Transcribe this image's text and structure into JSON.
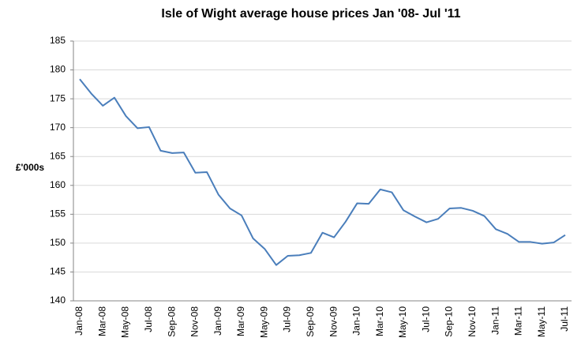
{
  "chart_data": {
    "type": "line",
    "title": "Isle of Wight average house prices Jan '08- Jul '11",
    "y_label": "£'000s",
    "categories": [
      "Jan-08",
      null,
      "Mar-08",
      null,
      "May-08",
      null,
      "Jul-08",
      null,
      "Sep-08",
      null,
      "Nov-08",
      null,
      "Jan-09",
      null,
      "Mar-09",
      null,
      "May-09",
      null,
      "Jul-09",
      null,
      "Sep-09",
      null,
      "Nov-09",
      null,
      "Jan-10",
      null,
      "Mar-10",
      null,
      "May-10",
      null,
      "Jul-10",
      null,
      "Sep-10",
      null,
      "Nov-10",
      null,
      "Jan-11",
      null,
      "Mar-11",
      null,
      "May-11",
      null,
      "Jul-11"
    ],
    "values": [
      178.4,
      175.9,
      173.8,
      175.2,
      172.0,
      169.9,
      170.1,
      166.0,
      165.6,
      165.7,
      162.2,
      162.3,
      158.4,
      156.0,
      154.8,
      150.8,
      149.0,
      146.2,
      147.8,
      147.9,
      148.3,
      151.8,
      151.0,
      153.7,
      156.9,
      156.8,
      159.3,
      158.8,
      155.7,
      154.6,
      153.6,
      154.2,
      156.0,
      156.1,
      155.6,
      154.7,
      152.4,
      151.6,
      150.2,
      150.2,
      149.9,
      150.1,
      151.4
    ],
    "color": "#4a7ebb",
    "ylim": [
      140,
      185
    ],
    "yticks": [
      140,
      145,
      150,
      155,
      160,
      165,
      170,
      175,
      180,
      185
    ],
    "grid": true
  }
}
